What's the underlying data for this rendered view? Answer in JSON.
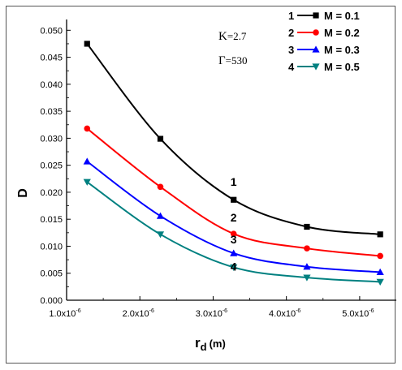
{
  "chart_data": {
    "type": "line",
    "xlabel": "r",
    "xlabel_sub": "d",
    "xlabel_unit": "(m)",
    "ylabel": "D",
    "xlim": [
      1e-06,
      5.5e-06
    ],
    "ylim": [
      0.0,
      0.052
    ],
    "x_ticks": [
      {
        "value": 1e-06,
        "mantissa": "1.0x10",
        "exp": "-6"
      },
      {
        "value": 2e-06,
        "mantissa": "2.0x10",
        "exp": "-6"
      },
      {
        "value": 3e-06,
        "mantissa": "3.0x10",
        "exp": "-6"
      },
      {
        "value": 4e-06,
        "mantissa": "4.0x10",
        "exp": "-6"
      },
      {
        "value": 5e-06,
        "mantissa": "5.0x10",
        "exp": "-6"
      }
    ],
    "y_ticks": [
      {
        "value": 0.0,
        "label": "0.000"
      },
      {
        "value": 0.005,
        "label": "0.005"
      },
      {
        "value": 0.01,
        "label": "0.010"
      },
      {
        "value": 0.015,
        "label": "0.015"
      },
      {
        "value": 0.02,
        "label": "0.020"
      },
      {
        "value": 0.025,
        "label": "0.025"
      },
      {
        "value": 0.03,
        "label": "0.030"
      },
      {
        "value": 0.035,
        "label": "0.035"
      },
      {
        "value": 0.04,
        "label": "0.040"
      },
      {
        "value": 0.045,
        "label": "0.045"
      },
      {
        "value": 0.05,
        "label": "0.050"
      }
    ],
    "x": [
      1.28e-06,
      2.28e-06,
      3.28e-06,
      4.28e-06,
      5.28e-06
    ],
    "series": [
      {
        "name": "M=0.1",
        "legend_id": "1",
        "color": "#000000",
        "marker": "square",
        "values": [
          0.0475,
          0.0299,
          0.0186,
          0.0136,
          0.0122
        ],
        "curve_label": "1",
        "curve_label_at": [
          3.28e-06,
          0.0212
        ]
      },
      {
        "name": "M=0.2",
        "legend_id": "2",
        "color": "#ff0000",
        "marker": "circle",
        "values": [
          0.0318,
          0.021,
          0.0123,
          0.0096,
          0.0082
        ],
        "curve_label": "2",
        "curve_label_at": [
          3.28e-06,
          0.0146
        ]
      },
      {
        "name": "M=0.3",
        "legend_id": "3",
        "color": "#0000ff",
        "marker": "triangle-up",
        "values": [
          0.0257,
          0.0156,
          0.0087,
          0.0062,
          0.0052
        ],
        "curve_label": "3",
        "curve_label_at": [
          3.28e-06,
          0.0105
        ]
      },
      {
        "name": "M=0.5",
        "legend_id": "4",
        "color": "#008080",
        "marker": "triangle-down",
        "values": [
          0.0219,
          0.0122,
          0.0061,
          0.0042,
          0.0034
        ],
        "curve_label": "4",
        "curve_label_at": [
          3.28e-06,
          0.0055
        ]
      }
    ],
    "annotations": [
      {
        "symbol": "Κ",
        "text": "=2.7"
      },
      {
        "symbol": "Γ",
        "text": "=530"
      }
    ],
    "legend_position": "top-right",
    "legend_dash": "—"
  }
}
